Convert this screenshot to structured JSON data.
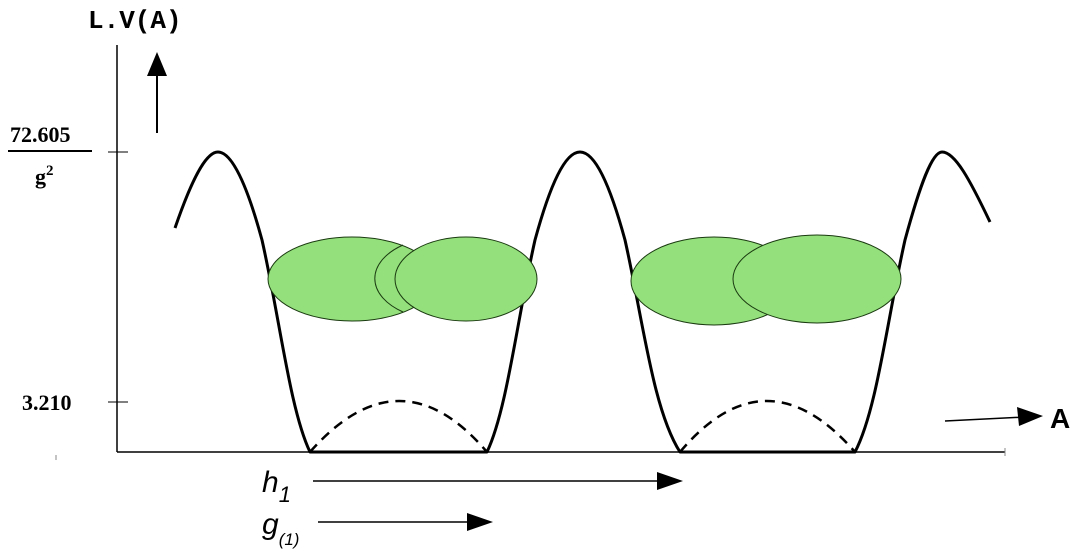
{
  "y_axis": {
    "label": "L.V(A)",
    "ticks": [
      {
        "numerator": "72.605",
        "denominator": "g",
        "denominator_exponent": "2"
      },
      {
        "label": "3.210"
      }
    ]
  },
  "x_axis": {
    "label": "A"
  },
  "annotations": {
    "h": {
      "base": "h",
      "subscript": "1"
    },
    "g": {
      "base": "g",
      "subscript": "(1)"
    }
  },
  "colors": {
    "ellipse_fill": "#94e07c",
    "ellipse_stroke": "#1a3a10",
    "line": "#000000"
  }
}
